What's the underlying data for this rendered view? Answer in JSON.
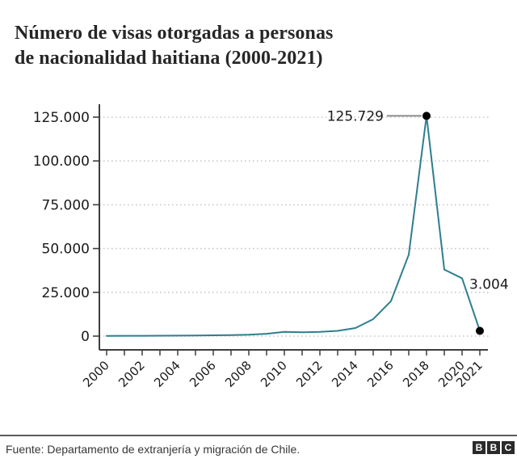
{
  "header": {
    "title_line1": "Número de visas otorgadas a personas",
    "title_line2": "de nacionalidad haitiana (2000-2021)"
  },
  "chart_data": {
    "type": "line",
    "title": "Número de visas otorgadas a personas de nacionalidad haitiana (2000-2021)",
    "x": [
      2000,
      2001,
      2002,
      2003,
      2004,
      2005,
      2006,
      2007,
      2008,
      2009,
      2010,
      2011,
      2012,
      2013,
      2014,
      2015,
      2016,
      2017,
      2018,
      2019,
      2020,
      2021
    ],
    "values": [
      100,
      150,
      200,
      250,
      300,
      350,
      450,
      600,
      800,
      1300,
      2400,
      2200,
      2400,
      3000,
      4600,
      9700,
      20000,
      46500,
      125729,
      38000,
      33000,
      3004
    ],
    "ylim": [
      0,
      125000
    ],
    "y_ticks": [
      {
        "value": 0,
        "label": "0"
      },
      {
        "value": 25000,
        "label": "25.000"
      },
      {
        "value": 50000,
        "label": "50.000"
      },
      {
        "value": 75000,
        "label": "75.000"
      },
      {
        "value": 100000,
        "label": "100.000"
      },
      {
        "value": 125000,
        "label": "125.000"
      }
    ],
    "x_tick_labels": [
      "2000",
      "2002",
      "2004",
      "2006",
      "2008",
      "2010",
      "2012",
      "2014",
      "2016",
      "2018",
      "2020",
      "2021"
    ],
    "grid": "horizontal-dotted",
    "legend": "none",
    "line_color": "#2e7e8f",
    "marker_color": "#111111",
    "annotations": [
      {
        "x": 2018,
        "value": 125729,
        "label": "125.729",
        "style": "left-connector"
      },
      {
        "x": 2021,
        "value": 3004,
        "label": "3.004",
        "style": "above-connector"
      }
    ]
  },
  "footer": {
    "source": "Fuente: Departamento de extranjería y migración de Chile.",
    "logo_letters": [
      "B",
      "B",
      "C"
    ]
  },
  "colors": {
    "line": "#2e7e8f",
    "axis": "#3d3d3d",
    "grid": "#c9c9c9",
    "text": "#1a1a1a",
    "connector_gray": "#8c8c8c",
    "divider": "#5a5a5a",
    "logo_bg": "#2b2b2b"
  }
}
